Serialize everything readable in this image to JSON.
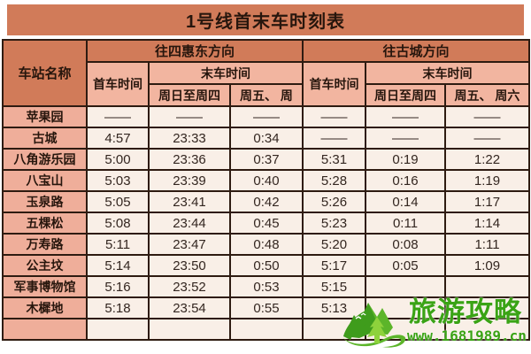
{
  "title": "1号线首末车时刻表",
  "table": {
    "station_col_header": "车站名称",
    "directions": [
      {
        "label": "往四惠东方向",
        "first_label": "首车时间",
        "last_label": "末车时间",
        "sub": [
          "周日至周四",
          "周五、 周"
        ]
      },
      {
        "label": "往古城方向",
        "first_label": "首车时间",
        "last_label": "末车时间",
        "sub": [
          "周日至周四",
          "周五、 周六"
        ]
      }
    ],
    "rows": [
      {
        "station": "苹果园",
        "cells": [
          "——",
          "——",
          "——",
          "——",
          "——",
          "——"
        ]
      },
      {
        "station": "古城",
        "cells": [
          "4:57",
          "23:33",
          "0:34",
          "——",
          "——",
          "——"
        ]
      },
      {
        "station": "八角游乐园",
        "cells": [
          "5:00",
          "23:36",
          "0:37",
          "5:31",
          "0:19",
          "1:22"
        ]
      },
      {
        "station": "八宝山",
        "cells": [
          "5:03",
          "23:39",
          "0:40",
          "5:28",
          "0:16",
          "1:19"
        ]
      },
      {
        "station": "玉泉路",
        "cells": [
          "5:05",
          "23:41",
          "0:42",
          "5:26",
          "0:14",
          "1:17"
        ]
      },
      {
        "station": "五棵松",
        "cells": [
          "5:08",
          "23:44",
          "0:45",
          "5:23",
          "0:11",
          "1:14"
        ]
      },
      {
        "station": "万寿路",
        "cells": [
          "5:11",
          "23:47",
          "0:48",
          "5:20",
          "0:08",
          "1:11"
        ]
      },
      {
        "station": "公主坟",
        "cells": [
          "5:14",
          "23:50",
          "0:50",
          "5:17",
          "0:05",
          "1:09"
        ]
      },
      {
        "station": "军事博物馆",
        "cells": [
          "5:16",
          "23:52",
          "0:53",
          "5:15",
          "",
          ""
        ]
      },
      {
        "station": "木樨地",
        "cells": [
          "5:18",
          "23:54",
          "0:55",
          "5:13",
          "",
          ""
        ]
      },
      {
        "station": "",
        "cells": [
          "",
          "",
          "",
          "",
          "",
          ""
        ]
      }
    ]
  },
  "watermark": {
    "brand": "旅游攻略",
    "url": "www.1681989.cn",
    "logo_icon": "mountain-tree-logo"
  },
  "colors": {
    "header_dark_salmon": "#d17b59",
    "header_light_salmon": "#f2b5a0",
    "station_cell": "#efae9a",
    "data_cell": "#f9efe7",
    "grid_border": "#2e1b11",
    "watermark_green": "#3aa315",
    "logo_dark_green": "#3f9c1c",
    "logo_light_green": "#8ed23c"
  }
}
